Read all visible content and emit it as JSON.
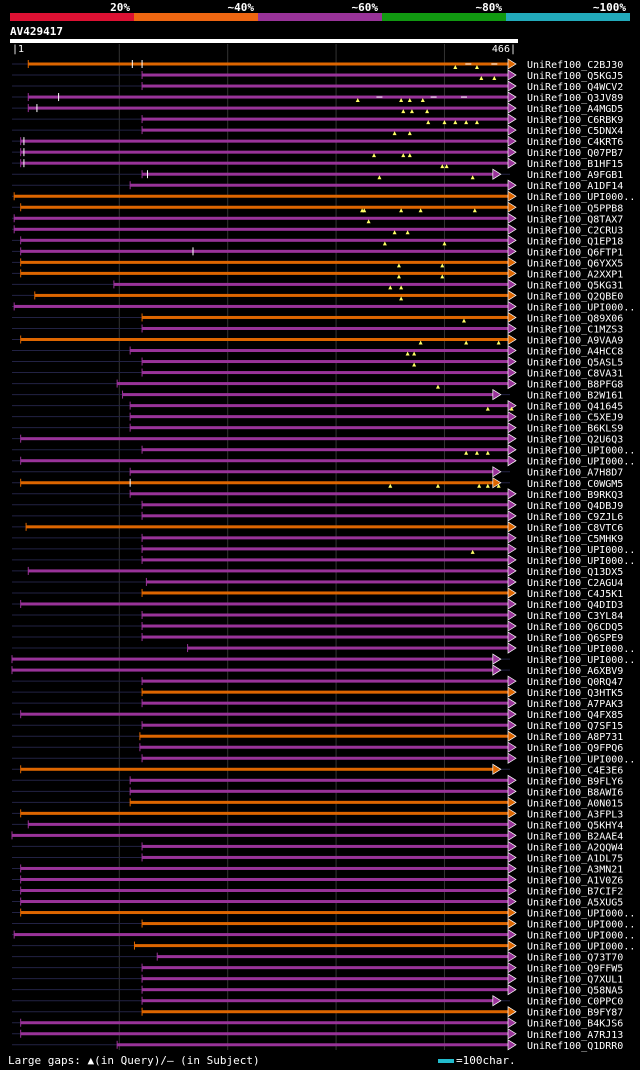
{
  "chart_data": {
    "type": "alignment-overview",
    "query_id": "AV429417",
    "query_length": 466,
    "axis_start_label": "1",
    "axis_end_label": "466",
    "identity_bins": [
      {
        "label": "20%",
        "color": "#dd1133"
      },
      {
        "label": "~40%",
        "color": "#ee6611"
      },
      {
        "label": "~60%",
        "color": "#993399"
      },
      {
        "label": "~80%",
        "color": "#119911"
      },
      {
        "label": "~100%",
        "color": "#22aabb"
      }
    ],
    "legend_text": "Large gaps: ▲(in Query)/– (in Subject)",
    "scale_text": "=100char.",
    "hits": [
      {
        "name": "UniRef100_C2BJ30",
        "start": 16,
        "end": 466,
        "color": "orange",
        "ticks": [
          112,
          121
        ],
        "gq": [
          410,
          430
        ],
        "gs": [
          422,
          446
        ]
      },
      {
        "name": "UniRef100_Q5KGJ5",
        "start": 121,
        "end": 466,
        "color": "purple",
        "ticks": [],
        "gq": [
          434,
          446
        ],
        "gs": []
      },
      {
        "name": "UniRef100_Q4WCV2",
        "start": 121,
        "end": 466,
        "color": "purple",
        "ticks": [],
        "gq": [],
        "gs": []
      },
      {
        "name": "UniRef100_Q3JV89",
        "start": 16,
        "end": 466,
        "color": "purple",
        "ticks": [
          44
        ],
        "gq": [
          320,
          360,
          368,
          380
        ],
        "gs": [
          340,
          390,
          418
        ]
      },
      {
        "name": "UniRef100_A4MGD5",
        "start": 16,
        "end": 466,
        "color": "purple",
        "ticks": [
          24
        ],
        "gq": [
          362,
          370,
          384
        ],
        "gs": []
      },
      {
        "name": "UniRef100_C6RBK9",
        "start": 121,
        "end": 466,
        "color": "purple",
        "ticks": [],
        "gq": [
          385,
          400,
          410,
          420,
          430
        ],
        "gs": []
      },
      {
        "name": "UniRef100_C5DNX4",
        "start": 121,
        "end": 466,
        "color": "purple",
        "ticks": [],
        "gq": [
          354,
          368
        ],
        "gs": []
      },
      {
        "name": "UniRef100_C4KRT6",
        "start": 9,
        "end": 466,
        "color": "purple",
        "ticks": [
          12
        ],
        "gq": [],
        "gs": []
      },
      {
        "name": "UniRef100_Q07PB7",
        "start": 9,
        "end": 466,
        "color": "purple",
        "ticks": [
          12
        ],
        "gq": [
          335,
          362,
          368
        ],
        "gs": []
      },
      {
        "name": "UniRef100_B1HF15",
        "start": 9,
        "end": 466,
        "color": "purple",
        "ticks": [
          12
        ],
        "gq": [
          398,
          402
        ],
        "gs": []
      },
      {
        "name": "UniRef100_A9FGB1",
        "start": 121,
        "end": 452,
        "color": "purple",
        "ticks": [
          126
        ],
        "gq": [
          340,
          426
        ],
        "gs": []
      },
      {
        "name": "UniRef100_A1DF14",
        "start": 110,
        "end": 466,
        "color": "purple",
        "ticks": [],
        "gq": [],
        "gs": []
      },
      {
        "name": "UniRef100_UPI000..",
        "start": 3,
        "end": 466,
        "color": "orange",
        "ticks": [],
        "gq": [],
        "gs": []
      },
      {
        "name": "UniRef100_Q5PPB8",
        "start": 9,
        "end": 466,
        "color": "orange",
        "ticks": [],
        "gq": [
          324,
          326,
          360,
          378,
          428
        ],
        "gs": []
      },
      {
        "name": "UniRef100_Q8TAX7",
        "start": 3,
        "end": 466,
        "color": "purple",
        "ticks": [],
        "gq": [
          330
        ],
        "gs": []
      },
      {
        "name": "UniRef100_C2CRU3",
        "start": 3,
        "end": 466,
        "color": "purple",
        "ticks": [],
        "gq": [
          354,
          366
        ],
        "gs": []
      },
      {
        "name": "UniRef100_Q1EP18",
        "start": 9,
        "end": 466,
        "color": "purple",
        "ticks": [],
        "gq": [
          345,
          400
        ],
        "gs": []
      },
      {
        "name": "UniRef100_Q6FTP1",
        "start": 9,
        "end": 466,
        "color": "purple",
        "ticks": [
          168
        ],
        "gq": [],
        "gs": []
      },
      {
        "name": "UniRef100_Q6YXX5",
        "start": 9,
        "end": 466,
        "color": "orange",
        "ticks": [],
        "gq": [
          358,
          398
        ],
        "gs": []
      },
      {
        "name": "UniRef100_A2XXP1",
        "start": 9,
        "end": 466,
        "color": "orange",
        "ticks": [],
        "gq": [
          358,
          398
        ],
        "gs": []
      },
      {
        "name": "UniRef100_Q5KG31",
        "start": 95,
        "end": 466,
        "color": "purple",
        "ticks": [],
        "gq": [
          350,
          360
        ],
        "gs": []
      },
      {
        "name": "UniRef100_Q2QBE0",
        "start": 22,
        "end": 466,
        "color": "orange",
        "ticks": [],
        "gq": [
          360
        ],
        "gs": []
      },
      {
        "name": "UniRef100_UPI000..",
        "start": 3,
        "end": 466,
        "color": "purple",
        "ticks": [],
        "gq": [],
        "gs": []
      },
      {
        "name": "UniRef100_Q89X06",
        "start": 121,
        "end": 466,
        "color": "orange",
        "ticks": [],
        "gq": [
          418
        ],
        "gs": []
      },
      {
        "name": "UniRef100_C1MZS3",
        "start": 121,
        "end": 466,
        "color": "purple",
        "ticks": [],
        "gq": [],
        "gs": []
      },
      {
        "name": "UniRef100_A9VAA9",
        "start": 9,
        "end": 466,
        "color": "orange",
        "ticks": [],
        "gq": [
          378,
          420,
          450
        ],
        "gs": []
      },
      {
        "name": "UniRef100_A4HCC8",
        "start": 110,
        "end": 466,
        "color": "purple",
        "ticks": [],
        "gq": [
          366,
          372
        ],
        "gs": []
      },
      {
        "name": "UniRef100_Q5ASL5",
        "start": 121,
        "end": 466,
        "color": "purple",
        "ticks": [],
        "gq": [
          372
        ],
        "gs": []
      },
      {
        "name": "UniRef100_C8VA31",
        "start": 121,
        "end": 466,
        "color": "purple",
        "ticks": [],
        "gq": [],
        "gs": []
      },
      {
        "name": "UniRef100_B8PFG8",
        "start": 98,
        "end": 466,
        "color": "purple",
        "ticks": [],
        "gq": [
          394
        ],
        "gs": []
      },
      {
        "name": "UniRef100_B2W161",
        "start": 103,
        "end": 452,
        "color": "purple",
        "ticks": [],
        "gq": [],
        "gs": []
      },
      {
        "name": "UniRef100_Q41645",
        "start": 110,
        "end": 466,
        "color": "purple",
        "ticks": [],
        "gq": [
          440,
          462
        ],
        "gs": []
      },
      {
        "name": "UniRef100_C5XEJ9",
        "start": 110,
        "end": 466,
        "color": "purple",
        "ticks": [],
        "gq": [],
        "gs": []
      },
      {
        "name": "UniRef100_B6KLS9",
        "start": 110,
        "end": 466,
        "color": "purple",
        "ticks": [],
        "gq": [],
        "gs": []
      },
      {
        "name": "UniRef100_Q2U6Q3",
        "start": 9,
        "end": 466,
        "color": "purple",
        "ticks": [],
        "gq": [],
        "gs": []
      },
      {
        "name": "UniRef100_UPI000..",
        "start": 121,
        "end": 466,
        "color": "purple",
        "ticks": [],
        "gq": [
          420,
          430,
          440
        ],
        "gs": []
      },
      {
        "name": "UniRef100_UPI000..",
        "start": 9,
        "end": 466,
        "color": "purple",
        "ticks": [],
        "gq": [],
        "gs": []
      },
      {
        "name": "UniRef100_A7H8D7",
        "start": 110,
        "end": 452,
        "color": "purple",
        "ticks": [],
        "gq": [],
        "gs": []
      },
      {
        "name": "UniRef100_C0WGM5",
        "start": 9,
        "end": 452,
        "color": "orange",
        "ticks": [
          110
        ],
        "gq": [
          350,
          394,
          432,
          440,
          450
        ],
        "gs": []
      },
      {
        "name": "UniRef100_B9RKQ3",
        "start": 110,
        "end": 466,
        "color": "purple",
        "ticks": [],
        "gq": [],
        "gs": []
      },
      {
        "name": "UniRef100_Q4DBJ9",
        "start": 121,
        "end": 466,
        "color": "purple",
        "ticks": [],
        "gq": [],
        "gs": []
      },
      {
        "name": "UniRef100_C9ZJL6",
        "start": 121,
        "end": 466,
        "color": "purple",
        "ticks": [],
        "gq": [],
        "gs": []
      },
      {
        "name": "UniRef100_C8VTC6",
        "start": 14,
        "end": 466,
        "color": "orange",
        "ticks": [],
        "gq": [],
        "gs": []
      },
      {
        "name": "UniRef100_C5MHK9",
        "start": 121,
        "end": 466,
        "color": "purple",
        "ticks": [],
        "gq": [],
        "gs": []
      },
      {
        "name": "UniRef100_UPI000..",
        "start": 121,
        "end": 466,
        "color": "purple",
        "ticks": [],
        "gq": [
          426
        ],
        "gs": []
      },
      {
        "name": "UniRef100_UPI000..",
        "start": 121,
        "end": 466,
        "color": "purple",
        "ticks": [],
        "gq": [],
        "gs": []
      },
      {
        "name": "UniRef100_Q13DX5",
        "start": 16,
        "end": 466,
        "color": "purple",
        "ticks": [],
        "gq": [],
        "gs": []
      },
      {
        "name": "UniRef100_C2AGU4",
        "start": 125,
        "end": 466,
        "color": "purple",
        "ticks": [],
        "gq": [],
        "gs": []
      },
      {
        "name": "UniRef100_C4J5K1",
        "start": 121,
        "end": 466,
        "color": "orange",
        "ticks": [],
        "gq": [],
        "gs": []
      },
      {
        "name": "UniRef100_Q4DID3",
        "start": 9,
        "end": 466,
        "color": "purple",
        "ticks": [],
        "gq": [],
        "gs": []
      },
      {
        "name": "UniRef100_C3YL84",
        "start": 121,
        "end": 466,
        "color": "purple",
        "ticks": [],
        "gq": [],
        "gs": []
      },
      {
        "name": "UniRef100_Q6CDQ5",
        "start": 121,
        "end": 466,
        "color": "purple",
        "ticks": [],
        "gq": [],
        "gs": []
      },
      {
        "name": "UniRef100_Q6SPE9",
        "start": 121,
        "end": 466,
        "color": "purple",
        "ticks": [],
        "gq": [],
        "gs": []
      },
      {
        "name": "UniRef100_UPI000..",
        "start": 163,
        "end": 466,
        "color": "purple",
        "ticks": [],
        "gq": [],
        "gs": []
      },
      {
        "name": "UniRef100_UPI000..",
        "start": 1,
        "end": 452,
        "color": "purple",
        "ticks": [],
        "gq": [],
        "gs": []
      },
      {
        "name": "UniRef100_A6XBV9",
        "start": 1,
        "end": 452,
        "color": "purple",
        "ticks": [],
        "gq": [],
        "gs": []
      },
      {
        "name": "UniRef100_Q0RQ47",
        "start": 121,
        "end": 466,
        "color": "purple",
        "ticks": [],
        "gq": [],
        "gs": []
      },
      {
        "name": "UniRef100_Q3HTK5",
        "start": 121,
        "end": 466,
        "color": "orange",
        "ticks": [],
        "gq": [],
        "gs": []
      },
      {
        "name": "UniRef100_A7PAK3",
        "start": 121,
        "end": 466,
        "color": "purple",
        "ticks": [],
        "gq": [],
        "gs": []
      },
      {
        "name": "UniRef100_Q4FX85",
        "start": 9,
        "end": 466,
        "color": "purple",
        "ticks": [],
        "gq": [],
        "gs": []
      },
      {
        "name": "UniRef100_Q7SF15",
        "start": 121,
        "end": 466,
        "color": "purple",
        "ticks": [],
        "gq": [],
        "gs": []
      },
      {
        "name": "UniRef100_A8P731",
        "start": 119,
        "end": 466,
        "color": "orange",
        "ticks": [],
        "gq": [],
        "gs": []
      },
      {
        "name": "UniRef100_Q9FPQ6",
        "start": 119,
        "end": 466,
        "color": "purple",
        "ticks": [],
        "gq": [],
        "gs": []
      },
      {
        "name": "UniRef100_UPI000..",
        "start": 121,
        "end": 466,
        "color": "purple",
        "ticks": [],
        "gq": [],
        "gs": []
      },
      {
        "name": "UniRef100_C4E3E6",
        "start": 9,
        "end": 452,
        "color": "orange",
        "ticks": [],
        "gq": [],
        "gs": []
      },
      {
        "name": "UniRef100_B9FLY6",
        "start": 110,
        "end": 466,
        "color": "purple",
        "ticks": [],
        "gq": [],
        "gs": []
      },
      {
        "name": "UniRef100_B8AWI6",
        "start": 110,
        "end": 466,
        "color": "purple",
        "ticks": [],
        "gq": [],
        "gs": []
      },
      {
        "name": "UniRef100_A0N015",
        "start": 110,
        "end": 466,
        "color": "orange",
        "ticks": [],
        "gq": [],
        "gs": []
      },
      {
        "name": "UniRef100_A3FPL3",
        "start": 9,
        "end": 466,
        "color": "orange",
        "ticks": [],
        "gq": [],
        "gs": []
      },
      {
        "name": "UniRef100_Q5KHY4",
        "start": 16,
        "end": 466,
        "color": "purple",
        "ticks": [],
        "gq": [],
        "gs": []
      },
      {
        "name": "UniRef100_B2AAE4",
        "start": 1,
        "end": 466,
        "color": "purple",
        "ticks": [],
        "gq": [],
        "gs": []
      },
      {
        "name": "UniRef100_A2QQW4",
        "start": 121,
        "end": 466,
        "color": "purple",
        "ticks": [],
        "gq": [],
        "gs": []
      },
      {
        "name": "UniRef100_A1DL75",
        "start": 121,
        "end": 466,
        "color": "purple",
        "ticks": [],
        "gq": [],
        "gs": []
      },
      {
        "name": "UniRef100_A3MN21",
        "start": 9,
        "end": 466,
        "color": "purple",
        "ticks": [],
        "gq": [],
        "gs": []
      },
      {
        "name": "UniRef100_A1V0Z6",
        "start": 9,
        "end": 466,
        "color": "purple",
        "ticks": [],
        "gq": [],
        "gs": []
      },
      {
        "name": "UniRef100_B7CIF2",
        "start": 9,
        "end": 466,
        "color": "purple",
        "ticks": [],
        "gq": [],
        "gs": []
      },
      {
        "name": "UniRef100_A5XUG5",
        "start": 9,
        "end": 466,
        "color": "purple",
        "ticks": [],
        "gq": [],
        "gs": []
      },
      {
        "name": "UniRef100_UPI000..",
        "start": 9,
        "end": 466,
        "color": "orange",
        "ticks": [],
        "gq": [],
        "gs": []
      },
      {
        "name": "UniRef100_UPI000..",
        "start": 121,
        "end": 466,
        "color": "orange",
        "ticks": [],
        "gq": [],
        "gs": []
      },
      {
        "name": "UniRef100_UPI000..",
        "start": 3,
        "end": 466,
        "color": "purple",
        "ticks": [],
        "gq": [],
        "gs": []
      },
      {
        "name": "UniRef100_UPI000..",
        "start": 114,
        "end": 466,
        "color": "orange",
        "ticks": [],
        "gq": [],
        "gs": []
      },
      {
        "name": "UniRef100_Q73T70",
        "start": 135,
        "end": 466,
        "color": "purple",
        "ticks": [],
        "gq": [],
        "gs": []
      },
      {
        "name": "UniRef100_Q9FFW5",
        "start": 121,
        "end": 466,
        "color": "purple",
        "ticks": [],
        "gq": [],
        "gs": []
      },
      {
        "name": "UniRef100_Q7XUL1",
        "start": 121,
        "end": 466,
        "color": "purple",
        "ticks": [],
        "gq": [],
        "gs": []
      },
      {
        "name": "UniRef100_Q58NA5",
        "start": 121,
        "end": 466,
        "color": "purple",
        "ticks": [],
        "gq": [],
        "gs": []
      },
      {
        "name": "UniRef100_C0PPC0",
        "start": 121,
        "end": 452,
        "color": "purple",
        "ticks": [],
        "gq": [],
        "gs": []
      },
      {
        "name": "UniRef100_B9FY87",
        "start": 121,
        "end": 466,
        "color": "orange",
        "ticks": [],
        "gq": [],
        "gs": []
      },
      {
        "name": "UniRef100_B4KJS6",
        "start": 9,
        "end": 466,
        "color": "purple",
        "ticks": [],
        "gq": [],
        "gs": []
      },
      {
        "name": "UniRef100_A7RJ13",
        "start": 9,
        "end": 466,
        "color": "purple",
        "ticks": [],
        "gq": [],
        "gs": []
      },
      {
        "name": "UniRef100_Q1DRR0",
        "start": 98,
        "end": 466,
        "color": "purple",
        "ticks": [],
        "gq": [],
        "gs": []
      }
    ]
  }
}
